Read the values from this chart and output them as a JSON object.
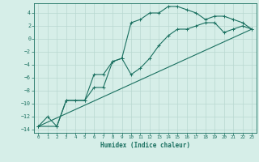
{
  "xlabel": "Humidex (Indice chaleur)",
  "ylabel": "",
  "bg_color": "#d6eee8",
  "grid_color": "#b8d8d0",
  "line_color": "#1a7060",
  "xlim": [
    -0.5,
    23.5
  ],
  "ylim": [
    -14.5,
    5.5
  ],
  "xticks": [
    0,
    1,
    2,
    3,
    4,
    5,
    6,
    7,
    8,
    9,
    10,
    11,
    12,
    13,
    14,
    15,
    16,
    17,
    18,
    19,
    20,
    21,
    22,
    23
  ],
  "yticks": [
    -14,
    -12,
    -10,
    -8,
    -6,
    -4,
    -2,
    0,
    2,
    4
  ],
  "curve1_x": [
    0,
    1,
    2,
    3,
    4,
    5,
    6,
    7,
    8,
    9,
    10,
    11,
    12,
    13,
    14,
    15,
    16,
    17,
    18,
    19,
    20,
    21,
    22,
    23
  ],
  "curve1_y": [
    -13.5,
    -12.0,
    -13.5,
    -9.5,
    -9.5,
    -9.5,
    -7.5,
    -7.5,
    -3.5,
    -3.0,
    2.5,
    3.0,
    4.0,
    4.0,
    5.0,
    5.0,
    4.5,
    4.0,
    3.0,
    3.5,
    3.5,
    3.0,
    2.5,
    1.5
  ],
  "curve2_x": [
    0,
    2,
    3,
    5,
    6,
    7,
    8,
    9,
    10,
    11,
    12,
    13,
    14,
    15,
    16,
    17,
    18,
    19,
    20,
    21,
    22,
    23
  ],
  "curve2_y": [
    -13.5,
    -13.5,
    -9.5,
    -9.5,
    -5.5,
    -5.5,
    -3.5,
    -3.0,
    -5.5,
    -4.5,
    -3.0,
    -1.0,
    0.5,
    1.5,
    1.5,
    2.0,
    2.5,
    2.5,
    1.0,
    1.5,
    2.0,
    1.5
  ],
  "line3_x": [
    0,
    23
  ],
  "line3_y": [
    -13.5,
    1.5
  ]
}
